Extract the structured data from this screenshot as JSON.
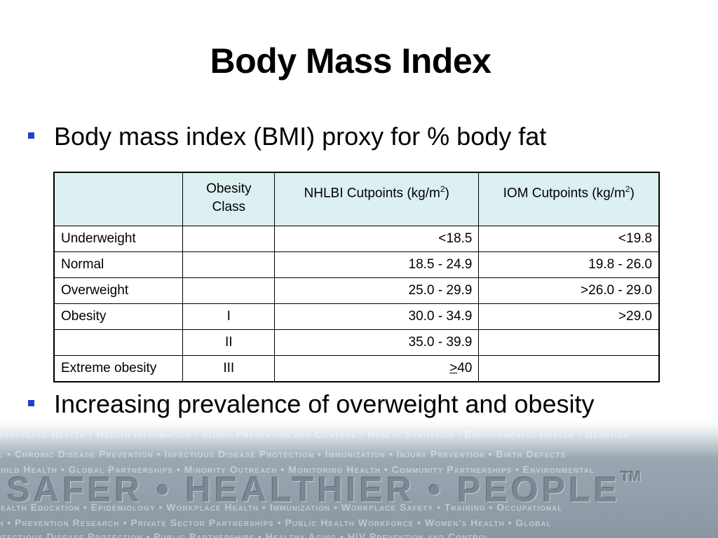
{
  "slide": {
    "title": "Body Mass Index",
    "bullets": [
      "Body mass index (BMI) proxy for % body fat",
      "Increasing prevalence of overweight and obesity"
    ]
  },
  "table": {
    "headers": {
      "obesity_class": "Obesity Class",
      "nhlbi": "NHLBI Cutpoints (kg/m",
      "iom": "IOM Cutpoints (kg/m",
      "sup": "2",
      "close": ")"
    },
    "rows": [
      {
        "category": "Underweight",
        "class": "",
        "nhlbi": "<18.5",
        "iom": "<19.8"
      },
      {
        "category": "Normal",
        "class": "",
        "nhlbi": "18.5 - 24.9",
        "iom": "19.8 - 26.0"
      },
      {
        "category": "Overweight",
        "class": "",
        "nhlbi": "25.0 - 29.9",
        "iom": ">26.0 - 29.0"
      },
      {
        "category": "Obesity",
        "class": "I",
        "nhlbi": "30.0 - 34.9",
        "iom": ">29.0"
      },
      {
        "category": "",
        "class": "II",
        "nhlbi": "35.0 - 39.9",
        "iom": ""
      },
      {
        "category": "Extreme obesity",
        "class": "III",
        "nhlbi_symbol": ">",
        "nhlbi_value": "40",
        "iom": ""
      }
    ]
  },
  "footer": {
    "tagline": "SAFER • HEALTHIER • PEOPLE",
    "trademark": "TM",
    "strips": [
      "Workplace Health • Health Information • Injury Prevention and Control • Health Statistics • Environmental Health • Genetics",
      "al • Chronic Disease Prevention • Infectious Disease Protection • Immunization • Injury Prevention • Birth Defects",
      "Child Health • Global Partnerships • Minority Outreach • Monitoring Health • Community Partnerships • Environmental",
      "Health Education • Epidemiology • Workplace Health • Immunization • Workplace Safety • Training • Occupational",
      "th • Prevention Research • Private Sector Partnerships • Public Health Workforce • Women's Health • Global",
      "Infectious Disease Protection • Public Partnerships • Healthy Aging • HIV Prevention and Control"
    ]
  }
}
